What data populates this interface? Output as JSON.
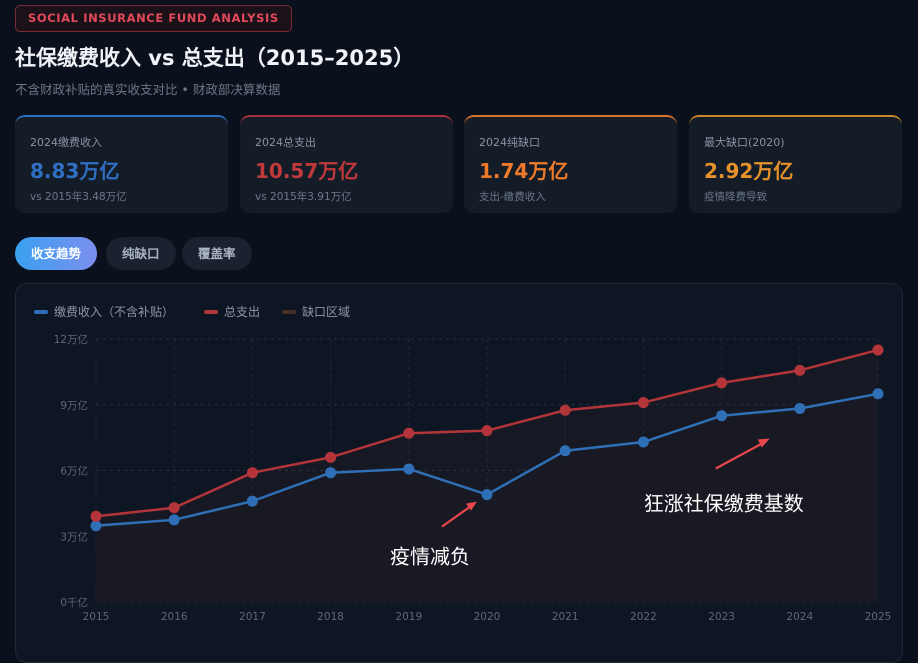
{
  "header": {
    "badge": "SOCIAL INSURANCE FUND ANALYSIS",
    "title": "社保缴费收入 vs 总支出（2015–2025）",
    "subtitle": "不含财政补贴的真实收支对比 • 财政部决算数据"
  },
  "cards": [
    {
      "label": "2024缴费收入",
      "value": "8.83万亿",
      "sub": "vs 2015年3.48万亿",
      "color": "#2f6fc4",
      "accent": "#2e6fbf"
    },
    {
      "label": "2024总支出",
      "value": "10.57万亿",
      "sub": "vs 2015年3.91万亿",
      "color": "#c0393b",
      "accent": "#a8323a"
    },
    {
      "label": "2024纯缺口",
      "value": "1.74万亿",
      "sub": "支出-缴费收入",
      "color": "#ef7b2a",
      "accent": "#d8752a"
    },
    {
      "label": "最大缺口(2020)",
      "value": "2.92万亿",
      "sub": "疫情降费导致",
      "color": "#e6922a",
      "accent": "#c7872a"
    }
  ],
  "tabs": [
    {
      "label": "收支趋势",
      "active": true
    },
    {
      "label": "纯缺口",
      "active": false
    },
    {
      "label": "覆盖率",
      "active": false
    }
  ],
  "chart_data": {
    "type": "line",
    "x": [
      "2015",
      "2016",
      "2017",
      "2018",
      "2019",
      "2020",
      "2021",
      "2022",
      "2023",
      "2024",
      "2025"
    ],
    "yticks": [
      "0千亿",
      "3万亿",
      "6万亿",
      "9万亿",
      "12万亿"
    ],
    "ylim": [
      0,
      12
    ],
    "grid": true,
    "legend_position": "top-left",
    "legend": [
      "缴费收入（不含补贴）",
      "总支出",
      "缺口区域"
    ],
    "gap_color": "#4a2e28",
    "series": [
      {
        "name": "缴费收入（不含补贴）",
        "color": "#2f6fb6",
        "values": [
          3.48,
          3.75,
          4.6,
          5.9,
          6.07,
          4.9,
          6.9,
          7.3,
          8.5,
          8.83,
          9.5
        ]
      },
      {
        "name": "总支出",
        "color": "#b3353a",
        "values": [
          3.91,
          4.3,
          5.9,
          6.6,
          7.7,
          7.82,
          8.75,
          9.1,
          10.0,
          10.57,
          11.5
        ]
      }
    ],
    "annotations": [
      {
        "text": "疫情减负",
        "x": "2020",
        "y": 4.9
      },
      {
        "text": "狂涨社保缴费基数",
        "x": "2024",
        "y": 8.83
      }
    ]
  }
}
